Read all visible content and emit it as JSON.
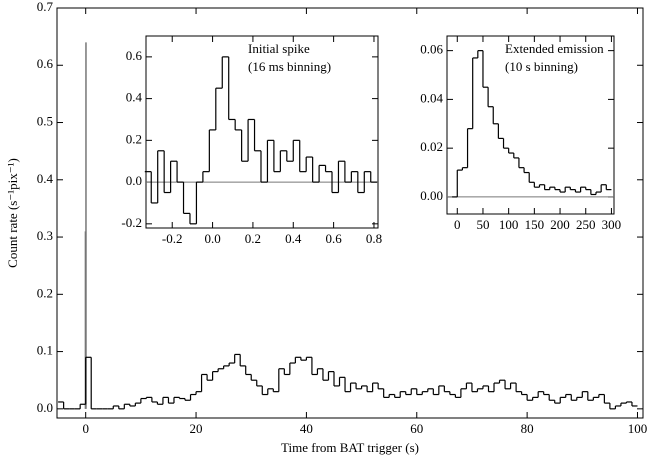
{
  "chart_data": [
    {
      "type": "histogram",
      "x_label": "Time from BAT trigger (s)",
      "y_label": "Count rate (s⁻¹pix⁻¹)",
      "bins": [
        -5,
        -4,
        -3,
        -2,
        -1,
        0,
        1,
        2,
        3,
        4,
        5,
        6,
        7,
        8,
        9,
        10,
        11,
        12,
        13,
        14,
        15,
        16,
        17,
        18,
        19,
        20,
        21,
        22,
        23,
        24,
        25,
        26,
        27,
        28,
        29,
        30,
        31,
        32,
        33,
        34,
        35,
        36,
        37,
        38,
        39,
        40,
        41,
        42,
        43,
        44,
        45,
        46,
        47,
        48,
        49,
        50,
        51,
        52,
        53,
        54,
        55,
        56,
        57,
        58,
        59,
        60,
        61,
        62,
        63,
        64,
        65,
        66,
        67,
        68,
        69,
        70,
        71,
        72,
        73,
        74,
        75,
        76,
        77,
        78,
        79,
        80,
        81,
        82,
        83,
        84,
        85,
        86,
        87,
        88,
        89,
        90,
        91,
        92,
        93,
        94,
        95,
        96,
        97,
        98,
        99,
        100
      ],
      "values": [
        0.012,
        0,
        0,
        0,
        0.008,
        0.09,
        0,
        0,
        0,
        0,
        0.005,
        0,
        0.008,
        0.005,
        0.01,
        0.018,
        0.02,
        0.012,
        0.008,
        0.02,
        0.01,
        0.02,
        0.018,
        0.015,
        0.025,
        0.03,
        0.06,
        0.05,
        0.065,
        0.07,
        0.075,
        0.08,
        0.095,
        0.075,
        0.06,
        0.05,
        0.04,
        0.025,
        0.035,
        0.03,
        0.07,
        0.06,
        0.08,
        0.09,
        0.085,
        0.09,
        0.06,
        0.07,
        0.05,
        0.065,
        0.04,
        0.055,
        0.03,
        0.045,
        0.035,
        0.04,
        0.03,
        0.045,
        0.035,
        0.02,
        0.025,
        0.02,
        0.03,
        0.025,
        0.035,
        0.025,
        0.03,
        0.035,
        0.025,
        0.04,
        0.03,
        0.025,
        0.02,
        0.035,
        0.045,
        0.03,
        0.035,
        0.04,
        0.03,
        0.045,
        0.05,
        0.035,
        0.045,
        0.03,
        0.025,
        0.015,
        0.02,
        0.03,
        0.025,
        0.015,
        0.01,
        0.02,
        0.025,
        0.015,
        0.02,
        0.03,
        0.015,
        0.02,
        0.025,
        0.01,
        0,
        0.005,
        0.01,
        0.012,
        0.005
      ],
      "spike": {
        "x": [
          -0.05,
          0.05
        ],
        "values": [
          0.31,
          0.64
        ]
      },
      "color": "#000000",
      "spike_color": "#777777",
      "xlim": [
        -5.2,
        101
      ],
      "ylim": [
        -0.016,
        0.7
      ],
      "xticks": [
        0,
        20,
        40,
        60,
        80,
        100
      ],
      "yticks": [
        {
          "value": 0,
          "label": "0.0"
        },
        0.1,
        0.2,
        0.3,
        0.4,
        0.5,
        0.6,
        0.7
      ]
    },
    {
      "type": "histogram",
      "annotation": [
        "Initial spike",
        "(16 ms binning)"
      ],
      "bins": [
        -0.336,
        -0.304,
        -0.272,
        -0.24,
        -0.208,
        -0.176,
        -0.144,
        -0.112,
        -0.08,
        -0.048,
        -0.016,
        0.016,
        0.048,
        0.08,
        0.112,
        0.144,
        0.176,
        0.208,
        0.24,
        0.272,
        0.304,
        0.336,
        0.368,
        0.4,
        0.432,
        0.464,
        0.496,
        0.528,
        0.56,
        0.592,
        0.624,
        0.656,
        0.688,
        0.72,
        0.752,
        0.784,
        0.816
      ],
      "values": [
        0.05,
        -0.1,
        0.15,
        -0.05,
        0.1,
        0,
        -0.15,
        -0.2,
        0,
        0.05,
        0.25,
        0.45,
        0.6,
        0.3,
        0.25,
        0.1,
        0.3,
        0.15,
        0,
        0.2,
        0.05,
        0.15,
        0.1,
        0.2,
        0.05,
        0.12,
        0,
        0.08,
        0.05,
        -0.05,
        0.1,
        0,
        0.05,
        -0.05,
        0.05,
        0
      ],
      "color": "#000000",
      "xlim": [
        -0.33,
        0.82
      ],
      "ylim": [
        -0.22,
        0.7
      ],
      "xticks": [
        -0.2,
        {
          "value": 0,
          "label": "0.0"
        },
        0.2,
        0.4,
        0.6,
        0.8
      ],
      "yticks": [
        -0.2,
        {
          "value": 0,
          "label": "0.0"
        },
        0.2,
        0.4,
        0.6
      ]
    },
    {
      "type": "histogram",
      "annotation": [
        "Extended emission",
        "(10 s binning)"
      ],
      "bins": [
        -10,
        0,
        10,
        20,
        30,
        40,
        50,
        60,
        70,
        80,
        90,
        100,
        110,
        120,
        130,
        140,
        150,
        160,
        170,
        180,
        190,
        200,
        210,
        220,
        230,
        240,
        250,
        260,
        270,
        280,
        290,
        300
      ],
      "values": [
        0,
        0.011,
        0.012,
        0.028,
        0.057,
        0.06,
        0.045,
        0.037,
        0.03,
        0.024,
        0.02,
        0.018,
        0.016,
        0.012,
        0.01,
        0.006,
        0.004,
        0.005,
        0.003,
        0.004,
        0.003,
        0.002,
        0.004,
        0.003,
        0.002,
        0.004,
        0.003,
        0.001,
        0.002,
        0.005,
        0.003
      ],
      "color": "#000000",
      "xlim": [
        -20,
        305
      ],
      "ylim": [
        -0.007,
        0.066
      ],
      "xticks": [
        0,
        50,
        100,
        150,
        200,
        250,
        300
      ],
      "yticks": [
        {
          "value": 0,
          "label": "0.00"
        },
        0.02,
        0.04,
        0.06
      ]
    }
  ]
}
